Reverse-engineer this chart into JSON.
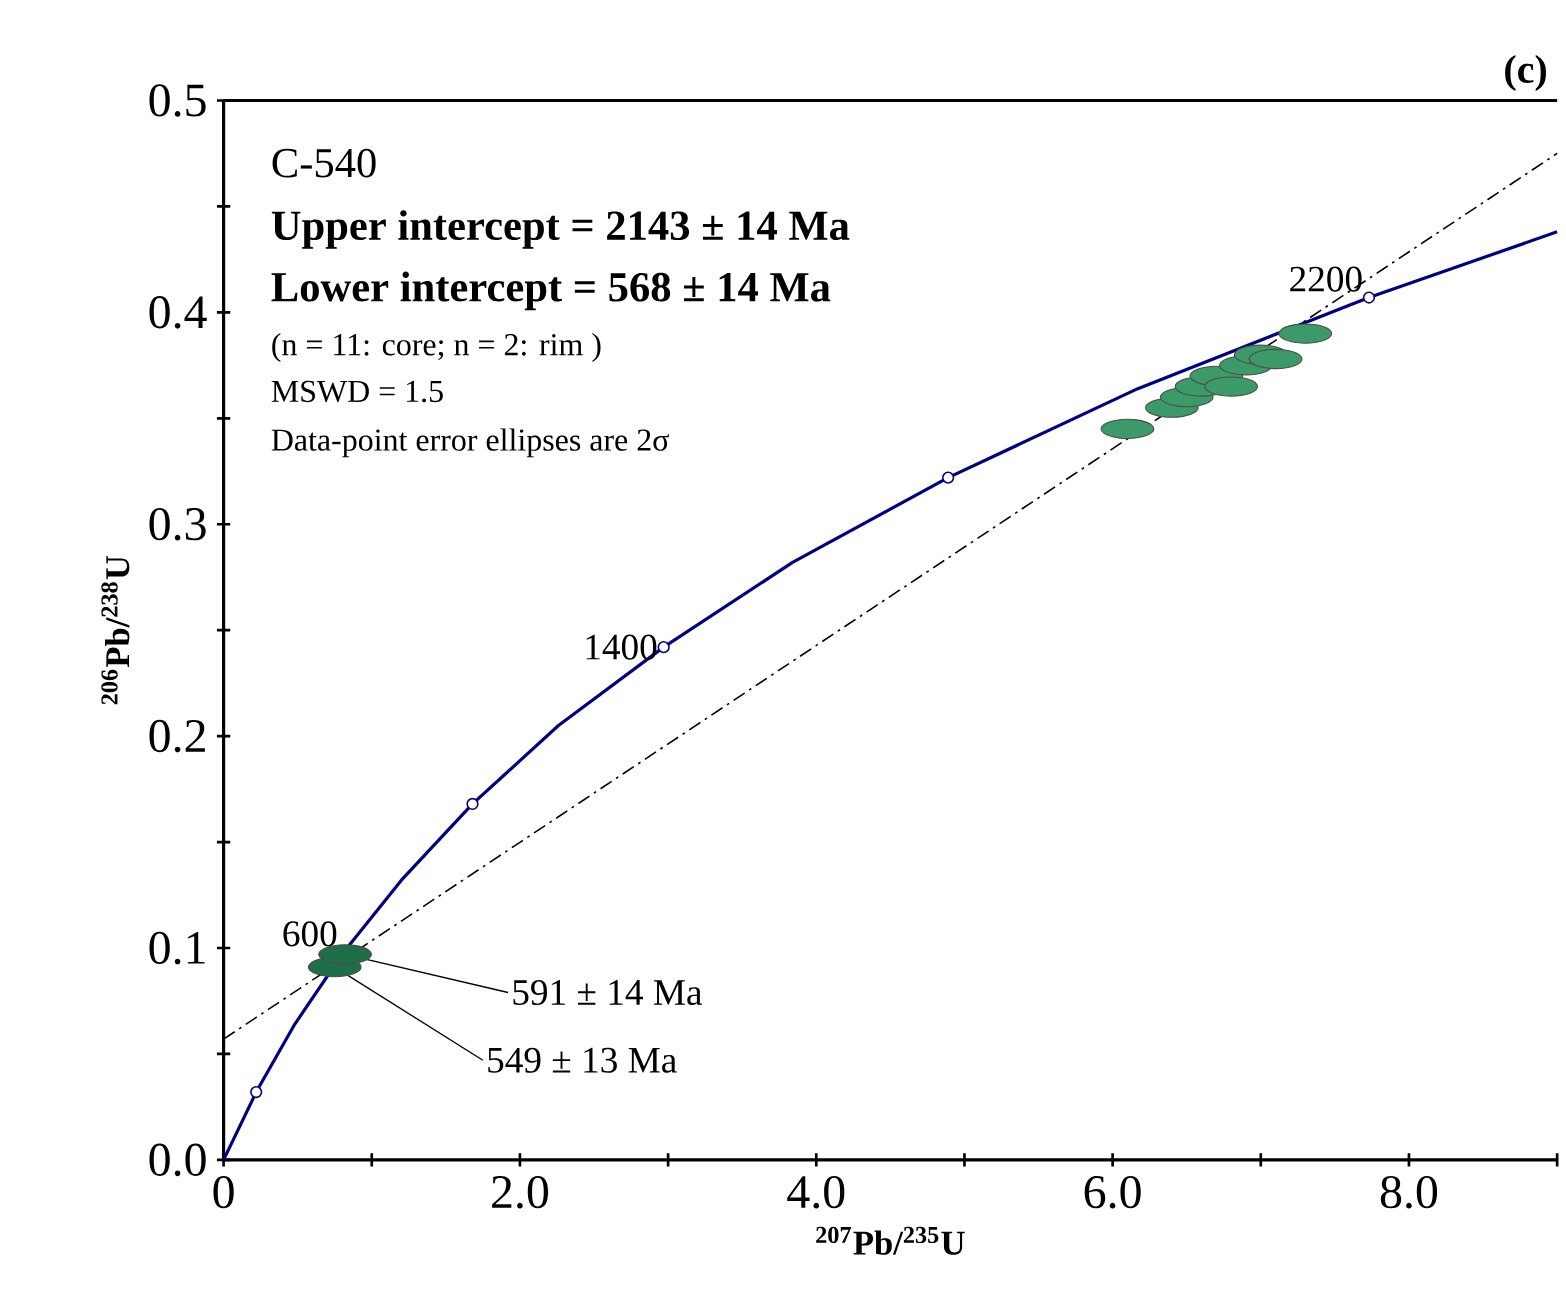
{
  "chart_data": {
    "type": "line",
    "xlabel": "$^{207}$Pb/$^{235}$U",
    "ylabel": "$^{206}$Pb/$^{238}$U",
    "xlim": [
      0,
      9
    ],
    "ylim": [
      0,
      0.5
    ],
    "xticks": [
      0,
      {
        "value": 1,
        "label": null
      },
      {
        "value": 2,
        "label": "2.0"
      },
      {
        "value": 3,
        "label": null
      },
      {
        "value": 4,
        "label": "4.0"
      },
      {
        "value": 5,
        "label": null
      },
      {
        "value": 6,
        "label": "6.0"
      },
      {
        "value": 7,
        "label": null
      },
      {
        "value": 8,
        "label": "8.0"
      },
      {
        "value": 9,
        "label": null
      }
    ],
    "yticks": [
      {
        "value": 0,
        "label": "0.0"
      },
      {
        "value": 0.05,
        "label": null
      },
      0.1,
      {
        "value": 0.15,
        "label": null
      },
      0.2,
      {
        "value": 0.25,
        "label": null
      },
      0.3,
      {
        "value": 0.35,
        "label": null
      },
      0.4,
      {
        "value": 0.45,
        "label": null
      },
      0.5
    ],
    "grid": false,
    "series": [
      {
        "color": "#000080",
        "marker": "none",
        "line_style": "solid",
        "x": [
          0,
          0.22,
          0.48,
          0.81,
          1.2,
          1.68,
          2.26,
          2.97,
          3.84,
          4.89,
          6.17,
          7.73,
          9.0
        ],
        "values": [
          0,
          0.032,
          0.064,
          0.098,
          0.132,
          0.168,
          0.205,
          0.242,
          0.282,
          0.322,
          0.364,
          0.407,
          0.438
        ]
      },
      {
        "color": "#000000",
        "marker": "none",
        "line_style": "dashdot",
        "x": [
          0,
          9
        ],
        "values": [
          0.057,
          0.475
        ]
      },
      {
        "type": "scatter",
        "color": "#000080",
        "marker": "circle",
        "x": [
          0.22,
          1.68,
          2.97,
          4.89,
          7.73
        ],
        "values": [
          0.032,
          0.168,
          0.242,
          0.322,
          0.407
        ]
      },
      {
        "type": "scatter",
        "color": "#3c9a68",
        "marker": "circle",
        "x": [
          6.1,
          6.4,
          6.5,
          6.6,
          6.65,
          6.7,
          6.8,
          6.9,
          7.0,
          7.1,
          7.3
        ],
        "values": [
          0.345,
          0.355,
          0.36,
          0.365,
          null,
          0.37,
          0.365,
          0.375,
          0.38,
          0.378,
          0.39
        ]
      },
      {
        "type": "scatter",
        "color": "#1f6e4a",
        "marker": "circle",
        "x": [
          0.75,
          0.82
        ],
        "values": [
          0.091,
          0.097
        ]
      }
    ],
    "annotations": [
      "C-540",
      "Upper intercept = 2143 ± 14 Ma",
      "Lower intercept = 568 ± 14 Ma",
      "(n = 11: core; n = 2: rim )",
      "MSWD = 1.5",
      "Data-point error ellipses are 2σ",
      "(c)",
      {
        "text": "600",
        "x": 0.81,
        "y": 0.098
      },
      {
        "text": "1400",
        "x": 2.97,
        "y": 0.242
      },
      {
        "text": "2200",
        "x": 7.73,
        "y": 0.407
      },
      {
        "text": "591 ± 14 Ma",
        "x": 0.82,
        "y": 0.097
      },
      {
        "text": "549 ± 13 Ma",
        "x": 0.75,
        "y": 0.091
      }
    ]
  }
}
